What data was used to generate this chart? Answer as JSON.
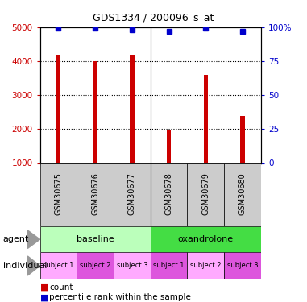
{
  "title": "GDS1334 / 200096_s_at",
  "samples": [
    "GSM30675",
    "GSM30676",
    "GSM30677",
    "GSM30678",
    "GSM30679",
    "GSM30680"
  ],
  "counts": [
    4200,
    4000,
    4200,
    1950,
    3600,
    2380
  ],
  "percentile_ranks": [
    99,
    99,
    98,
    97,
    99,
    97
  ],
  "ylim_left": [
    1000,
    5000
  ],
  "ylim_right": [
    0,
    100
  ],
  "yticks_left": [
    1000,
    2000,
    3000,
    4000,
    5000
  ],
  "yticks_right": [
    0,
    25,
    50,
    75,
    100
  ],
  "bar_color": "#cc0000",
  "dot_color": "#0000cc",
  "agent_colors": [
    "#bbffbb",
    "#44dd44"
  ],
  "agent_labels": [
    "baseline",
    "oxandrolone"
  ],
  "indiv_colors": [
    "#ffaaff",
    "#dd55dd",
    "#ffaaff",
    "#dd55dd",
    "#ffaaff",
    "#dd55dd"
  ],
  "indiv_labels": [
    "subject 1",
    "subject 2",
    "subject 3",
    "subject 1",
    "subject 2",
    "subject 3"
  ],
  "left_label_color": "#cc0000",
  "right_label_color": "#0000cc",
  "legend_count_color": "#cc0000",
  "legend_pct_color": "#0000cc",
  "sample_box_color": "#cccccc",
  "title_fontsize": 9,
  "bar_width": 0.12
}
